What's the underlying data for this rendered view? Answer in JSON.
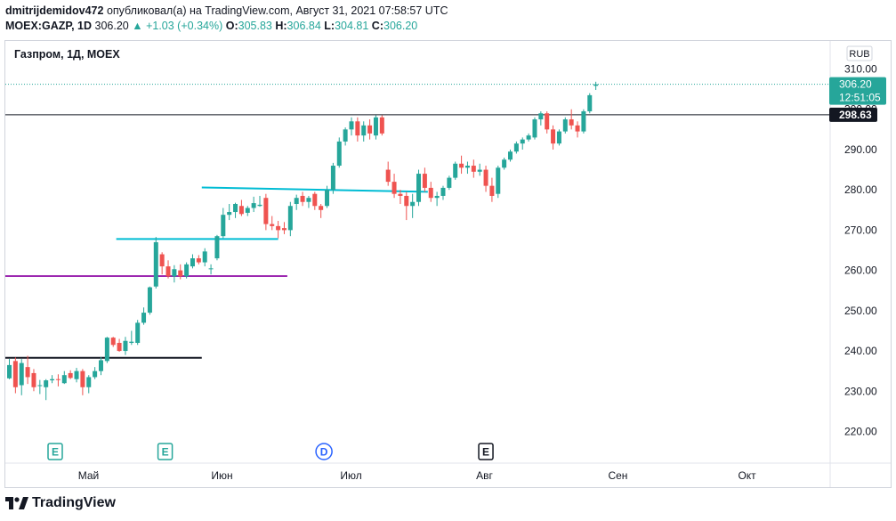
{
  "header": {
    "author": "dmitrijdemidov472",
    "published_text": "опубликовал(а) на TradingView.com, Август 31, 2021 07:58:57 UTC",
    "symbol": "MOEX:GAZP, 1D",
    "last": "306.20",
    "change_icon": "triangle-up",
    "change": "+1.03 (+0.34%)",
    "o_label": "O:",
    "o_value": "305.83",
    "h_label": "H:",
    "h_value": "306.84",
    "l_label": "L:",
    "l_value": "304.81",
    "c_label": "C:",
    "c_value": "306.20"
  },
  "chart_data": {
    "type": "candlestick",
    "title": "Газпром, 1Д, MOEX",
    "currency": "RUB",
    "y_ticks": [
      220,
      230,
      240,
      250,
      260,
      270,
      280,
      290,
      300,
      310
    ],
    "ylim": [
      213.3,
      317.3
    ],
    "x_ticks": [
      {
        "label": "Май",
        "date": "2021-05-01"
      },
      {
        "label": "Июн",
        "date": "2021-06-01"
      },
      {
        "label": "Июл",
        "date": "2021-07-01"
      },
      {
        "label": "Авг",
        "date": "2021-08-01"
      },
      {
        "label": "Сен",
        "date": "2021-09-01"
      },
      {
        "label": "Окт",
        "date": "2021-10-01"
      }
    ],
    "last_price": {
      "value": 306.2,
      "label": "306.20",
      "countdown": "12:51:05",
      "color": "#26a69a"
    },
    "price_line": {
      "value": 298.63,
      "label": "298.63",
      "color": "#131722"
    },
    "colors": {
      "up": "#26a69a",
      "down": "#ef5350"
    },
    "candles": [
      {
        "o": 233.2,
        "h": 238.0,
        "l": 233.0,
        "c": 236.5
      },
      {
        "o": 237.5,
        "h": 238.4,
        "l": 229.5,
        "c": 231.0
      },
      {
        "o": 231.5,
        "h": 238.0,
        "l": 229.0,
        "c": 237.0
      },
      {
        "o": 236.0,
        "h": 238.8,
        "l": 231.8,
        "c": 233.5
      },
      {
        "o": 234.5,
        "h": 235.5,
        "l": 230.0,
        "c": 231.0
      },
      {
        "o": 231.5,
        "h": 232.8,
        "l": 229.3,
        "c": 231.5
      },
      {
        "o": 231.0,
        "h": 233.0,
        "l": 227.8,
        "c": 232.7
      },
      {
        "o": 232.7,
        "h": 234.0,
        "l": 232.0,
        "c": 233.0
      },
      {
        "o": 233.0,
        "h": 234.2,
        "l": 231.2,
        "c": 232.8
      },
      {
        "o": 232.0,
        "h": 235.0,
        "l": 231.8,
        "c": 234.0
      },
      {
        "o": 234.5,
        "h": 235.2,
        "l": 233.0,
        "c": 233.3
      },
      {
        "o": 233.0,
        "h": 235.8,
        "l": 232.2,
        "c": 235.0
      },
      {
        "o": 235.0,
        "h": 235.5,
        "l": 229.0,
        "c": 231.0
      },
      {
        "o": 231.0,
        "h": 234.0,
        "l": 229.5,
        "c": 233.5
      },
      {
        "o": 233.5,
        "h": 236.0,
        "l": 233.0,
        "c": 235.0
      },
      {
        "o": 235.0,
        "h": 238.5,
        "l": 234.0,
        "c": 237.7
      },
      {
        "o": 237.5,
        "h": 243.5,
        "l": 237.0,
        "c": 243.3
      },
      {
        "o": 243.3,
        "h": 243.5,
        "l": 241.0,
        "c": 241.5
      },
      {
        "o": 242.0,
        "h": 243.0,
        "l": 239.8,
        "c": 240.0
      },
      {
        "o": 240.0,
        "h": 243.5,
        "l": 239.0,
        "c": 242.5
      },
      {
        "o": 242.0,
        "h": 245.0,
        "l": 241.5,
        "c": 242.3
      },
      {
        "o": 242.0,
        "h": 247.7,
        "l": 241.5,
        "c": 247.0
      },
      {
        "o": 247.0,
        "h": 250.8,
        "l": 246.5,
        "c": 249.5
      },
      {
        "o": 249.5,
        "h": 256.0,
        "l": 249.0,
        "c": 255.8
      },
      {
        "o": 256.0,
        "h": 268.3,
        "l": 255.5,
        "c": 267.0
      },
      {
        "o": 264.0,
        "h": 264.5,
        "l": 259.0,
        "c": 261.0
      },
      {
        "o": 261.0,
        "h": 262.5,
        "l": 258.0,
        "c": 258.5
      },
      {
        "o": 258.5,
        "h": 261.3,
        "l": 257.0,
        "c": 260.3
      },
      {
        "o": 260.0,
        "h": 261.5,
        "l": 257.8,
        "c": 258.5
      },
      {
        "o": 258.5,
        "h": 262.0,
        "l": 258.0,
        "c": 261.5
      },
      {
        "o": 261.0,
        "h": 264.0,
        "l": 260.5,
        "c": 263.0
      },
      {
        "o": 263.0,
        "h": 263.8,
        "l": 261.5,
        "c": 262.0
      },
      {
        "o": 262.0,
        "h": 265.5,
        "l": 261.0,
        "c": 264.7
      },
      {
        "o": 260.5,
        "h": 261.5,
        "l": 259.0,
        "c": 260.5
      },
      {
        "o": 263.0,
        "h": 268.8,
        "l": 262.5,
        "c": 268.5
      },
      {
        "o": 268.5,
        "h": 275.5,
        "l": 268.0,
        "c": 273.8
      },
      {
        "o": 273.8,
        "h": 276.5,
        "l": 272.5,
        "c": 274.5
      },
      {
        "o": 274.5,
        "h": 276.8,
        "l": 273.0,
        "c": 276.5
      },
      {
        "o": 276.0,
        "h": 277.5,
        "l": 273.5,
        "c": 274.0
      },
      {
        "o": 274.3,
        "h": 276.0,
        "l": 273.5,
        "c": 275.5
      },
      {
        "o": 275.5,
        "h": 278.3,
        "l": 274.5,
        "c": 276.7
      },
      {
        "o": 276.0,
        "h": 278.5,
        "l": 275.8,
        "c": 276.3
      },
      {
        "o": 278.0,
        "h": 279.0,
        "l": 270.0,
        "c": 271.5
      },
      {
        "o": 271.5,
        "h": 273.5,
        "l": 270.0,
        "c": 271.0
      },
      {
        "o": 271.0,
        "h": 272.3,
        "l": 268.0,
        "c": 270.0
      },
      {
        "o": 270.5,
        "h": 272.0,
        "l": 269.0,
        "c": 270.0
      },
      {
        "o": 270.0,
        "h": 277.0,
        "l": 268.5,
        "c": 276.0
      },
      {
        "o": 276.5,
        "h": 278.8,
        "l": 275.0,
        "c": 278.0
      },
      {
        "o": 278.5,
        "h": 279.5,
        "l": 276.0,
        "c": 277.0
      },
      {
        "o": 277.0,
        "h": 278.5,
        "l": 275.5,
        "c": 278.0
      },
      {
        "o": 279.0,
        "h": 279.5,
        "l": 275.0,
        "c": 276.0
      },
      {
        "o": 276.0,
        "h": 276.5,
        "l": 273.0,
        "c": 275.0
      },
      {
        "o": 276.0,
        "h": 281.0,
        "l": 275.5,
        "c": 280.0
      },
      {
        "o": 280.0,
        "h": 286.7,
        "l": 279.0,
        "c": 286.0
      },
      {
        "o": 286.0,
        "h": 293.0,
        "l": 285.5,
        "c": 292.0
      },
      {
        "o": 292.0,
        "h": 295.5,
        "l": 291.0,
        "c": 295.0
      },
      {
        "o": 295.0,
        "h": 298.0,
        "l": 293.5,
        "c": 297.0
      },
      {
        "o": 297.0,
        "h": 298.0,
        "l": 292.0,
        "c": 293.5
      },
      {
        "o": 293.5,
        "h": 297.0,
        "l": 292.0,
        "c": 296.0
      },
      {
        "o": 296.0,
        "h": 297.5,
        "l": 292.5,
        "c": 294.0
      },
      {
        "o": 293.5,
        "h": 298.5,
        "l": 292.5,
        "c": 298.0
      },
      {
        "o": 298.0,
        "h": 298.5,
        "l": 293.5,
        "c": 294.0
      },
      {
        "o": 285.0,
        "h": 287.0,
        "l": 281.0,
        "c": 282.0
      },
      {
        "o": 282.0,
        "h": 284.0,
        "l": 278.0,
        "c": 279.0
      },
      {
        "o": 279.0,
        "h": 280.0,
        "l": 276.5,
        "c": 278.5
      },
      {
        "o": 278.5,
        "h": 279.5,
        "l": 272.5,
        "c": 276.0
      },
      {
        "o": 276.0,
        "h": 279.0,
        "l": 273.0,
        "c": 277.0
      },
      {
        "o": 277.0,
        "h": 285.0,
        "l": 276.0,
        "c": 284.0
      },
      {
        "o": 284.0,
        "h": 285.5,
        "l": 279.5,
        "c": 280.5
      },
      {
        "o": 280.5,
        "h": 282.0,
        "l": 277.0,
        "c": 278.0
      },
      {
        "o": 278.0,
        "h": 279.5,
        "l": 276.0,
        "c": 278.5
      },
      {
        "o": 278.5,
        "h": 281.0,
        "l": 277.5,
        "c": 280.5
      },
      {
        "o": 280.5,
        "h": 283.5,
        "l": 280.0,
        "c": 283.0
      },
      {
        "o": 283.0,
        "h": 287.0,
        "l": 282.5,
        "c": 286.5
      },
      {
        "o": 286.5,
        "h": 288.5,
        "l": 284.0,
        "c": 285.5
      },
      {
        "o": 285.5,
        "h": 287.0,
        "l": 284.0,
        "c": 286.0
      },
      {
        "o": 286.0,
        "h": 287.5,
        "l": 283.0,
        "c": 284.5
      },
      {
        "o": 284.5,
        "h": 286.5,
        "l": 283.5,
        "c": 285.0
      },
      {
        "o": 285.0,
        "h": 286.0,
        "l": 279.5,
        "c": 281.0
      },
      {
        "o": 281.0,
        "h": 283.0,
        "l": 277.0,
        "c": 278.5
      },
      {
        "o": 279.0,
        "h": 286.0,
        "l": 278.0,
        "c": 285.5
      },
      {
        "o": 285.5,
        "h": 288.0,
        "l": 285.0,
        "c": 287.5
      },
      {
        "o": 287.5,
        "h": 290.0,
        "l": 287.0,
        "c": 289.5
      },
      {
        "o": 289.5,
        "h": 292.0,
        "l": 289.0,
        "c": 291.5
      },
      {
        "o": 291.5,
        "h": 293.0,
        "l": 290.0,
        "c": 292.5
      },
      {
        "o": 292.5,
        "h": 294.0,
        "l": 292.0,
        "c": 293.5
      },
      {
        "o": 293.0,
        "h": 298.0,
        "l": 292.5,
        "c": 297.5
      },
      {
        "o": 297.5,
        "h": 299.5,
        "l": 296.0,
        "c": 299.0
      },
      {
        "o": 299.0,
        "h": 299.5,
        "l": 294.0,
        "c": 295.0
      },
      {
        "o": 295.0,
        "h": 296.0,
        "l": 290.0,
        "c": 291.5
      },
      {
        "o": 291.5,
        "h": 295.0,
        "l": 291.0,
        "c": 294.5
      },
      {
        "o": 294.5,
        "h": 298.0,
        "l": 294.0,
        "c": 297.5
      },
      {
        "o": 297.5,
        "h": 300.0,
        "l": 295.0,
        "c": 296.0
      },
      {
        "o": 296.0,
        "h": 297.0,
        "l": 293.0,
        "c": 294.5
      },
      {
        "o": 294.5,
        "h": 300.0,
        "l": 294.0,
        "c": 299.5
      },
      {
        "o": 299.5,
        "h": 304.0,
        "l": 299.0,
        "c": 303.5
      },
      {
        "o": 305.83,
        "h": 306.84,
        "l": 304.81,
        "c": 306.2
      }
    ],
    "trend_lines": [
      {
        "color": "#131722",
        "y": 238.3,
        "from_index": -1,
        "to_index": 31.5
      },
      {
        "color": "#9c27b0",
        "y": 258.6,
        "from_index": -1,
        "to_index": 45.5
      },
      {
        "color": "#00bcd4",
        "y": 267.8,
        "from_index": 17.5,
        "to_index": 44.0
      },
      {
        "color": "#00bcd4",
        "y1": 280.6,
        "y2": 279.5,
        "from_index": 31.5,
        "to_index": 68.5
      }
    ],
    "event_markers": [
      {
        "letter": "E",
        "color": "#26a69a",
        "x_index": 7.5
      },
      {
        "letter": "E",
        "color": "#26a69a",
        "x_index": 25.5
      },
      {
        "letter": "D",
        "color": "#2962ff",
        "x_index": 51.5
      },
      {
        "letter": "E",
        "color": "#131722",
        "x_index": 78.0
      }
    ]
  },
  "footer": {
    "logo_text": "TradingView",
    "logo_icon": "tradingview-logo-icon"
  }
}
